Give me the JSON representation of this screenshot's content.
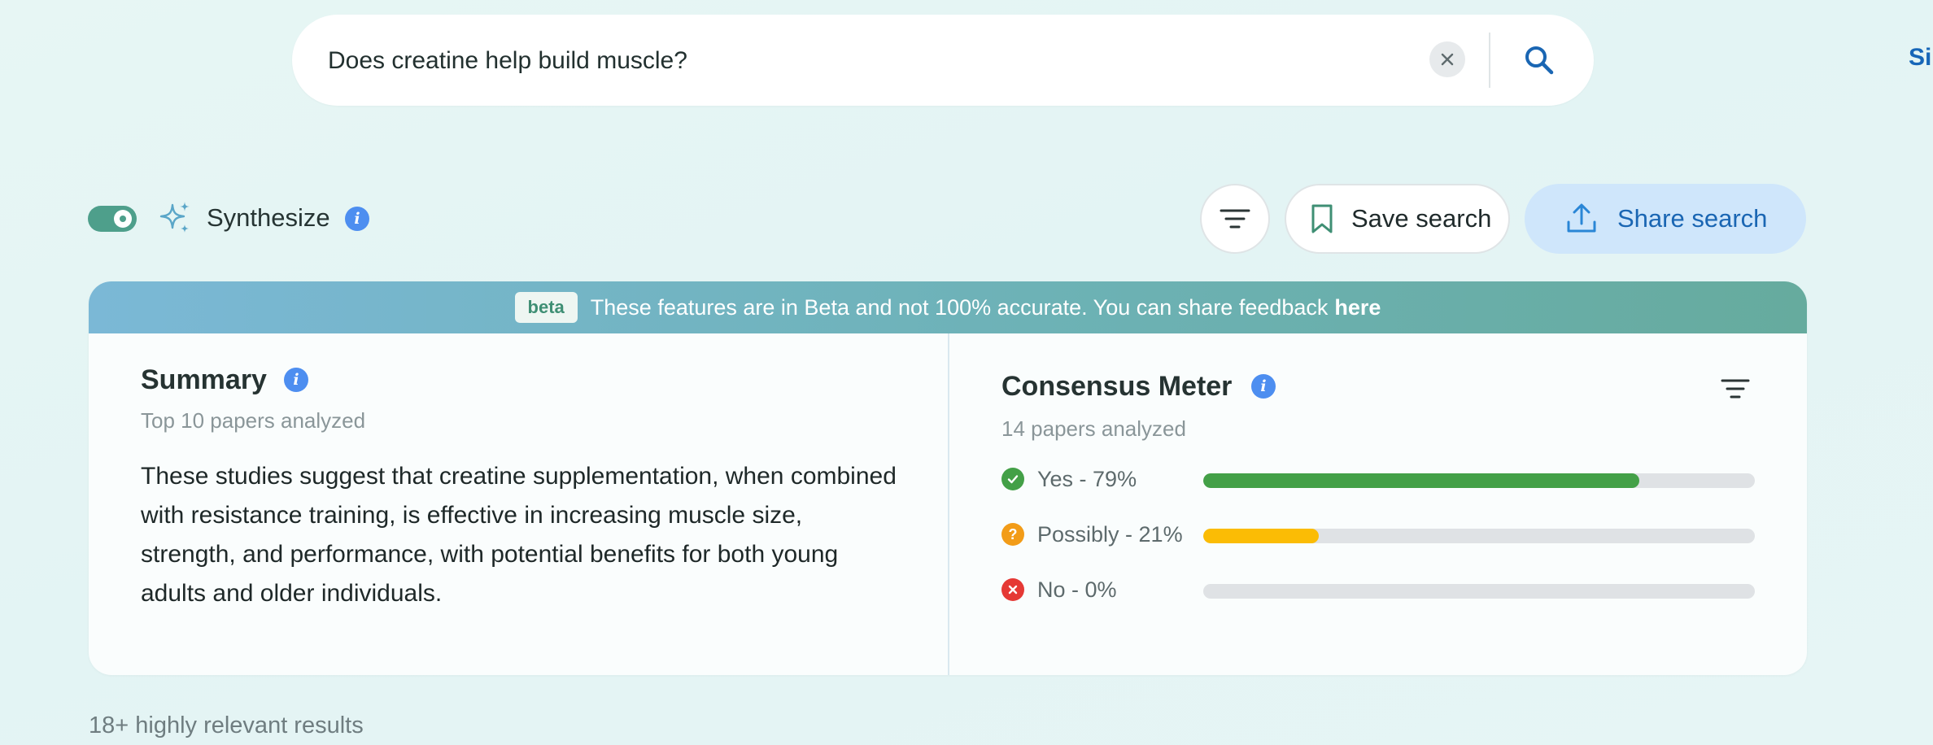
{
  "search": {
    "query": "Does creatine help build muscle?",
    "clear_icon": "close-icon",
    "search_icon": "search-icon"
  },
  "header": {
    "signin_label": "Si"
  },
  "toolbar": {
    "synthesize_label": "Synthesize",
    "synthesize_enabled": true,
    "save_label": "Save search",
    "share_label": "Share search"
  },
  "banner": {
    "badge": "beta",
    "text": "These features are in Beta and not 100% accurate. You can share feedback",
    "link": "here"
  },
  "summary": {
    "title": "Summary",
    "subtitle": "Top 10 papers analyzed",
    "body": "These studies suggest that creatine supplementation, when combined with resistance training, is effective in increasing muscle size, strength, and performance, with potential benefits for both young adults and older individuals."
  },
  "consensus": {
    "title": "Consensus Meter",
    "subtitle": "14 papers analyzed",
    "rows": [
      {
        "label": "Yes - 79%",
        "value": 79,
        "color": "#43a047",
        "icon": "check-icon"
      },
      {
        "label": "Possibly - 21%",
        "value": 21,
        "color": "#fbbc05",
        "icon": "question-icon"
      },
      {
        "label": "No - 0%",
        "value": 0,
        "color": "#e53935",
        "icon": "x-icon"
      }
    ]
  },
  "results": {
    "count_label": "18+ highly relevant results"
  },
  "colors": {
    "accent_blue": "#1a66b3",
    "toggle_green": "#4e9f8b",
    "info_blue": "#4d8ef0"
  }
}
